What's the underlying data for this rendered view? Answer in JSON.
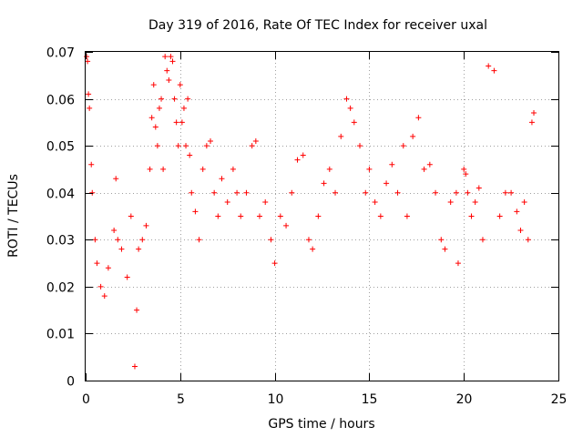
{
  "chart_data": {
    "type": "scatter",
    "title": "Day 319 of 2016, Rate Of TEC Index for receiver uxal",
    "xlabel": "GPS time / hours",
    "ylabel": "ROTI / TECUs",
    "xlim": [
      0,
      25
    ],
    "ylim": [
      0,
      0.07
    ],
    "x_ticks": [
      0,
      5,
      10,
      15,
      20,
      25
    ],
    "x_tick_labels": [
      "0",
      "5",
      "10",
      "15",
      "20",
      "25"
    ],
    "y_ticks": [
      0,
      0.01,
      0.02,
      0.03,
      0.04,
      0.05,
      0.06,
      0.07
    ],
    "y_tick_labels": [
      "0",
      "0.01",
      "0.02",
      "0.03",
      "0.04",
      "0.05",
      "0.06",
      "0.07"
    ],
    "grid": true,
    "legend": "none",
    "marker": "plus",
    "series": [
      {
        "color": "#ff0000",
        "x": [
          0.05,
          0.1,
          0.15,
          0.2,
          0.3,
          0.35,
          0.5,
          0.6,
          0.8,
          1.0,
          1.2,
          1.5,
          1.6,
          1.7,
          1.9,
          2.2,
          2.4,
          2.6,
          2.7,
          2.8,
          3.0,
          3.2,
          3.4,
          3.5,
          3.6,
          3.7,
          3.8,
          3.9,
          4.0,
          4.1,
          4.2,
          4.3,
          4.4,
          4.5,
          4.6,
          4.7,
          4.8,
          4.9,
          5.0,
          5.1,
          5.2,
          5.3,
          5.4,
          5.5,
          5.6,
          5.8,
          6.0,
          6.2,
          6.4,
          6.6,
          6.8,
          7.0,
          7.2,
          7.5,
          7.8,
          8.0,
          8.2,
          8.5,
          8.8,
          9.0,
          9.2,
          9.5,
          9.8,
          10.0,
          10.3,
          10.6,
          10.9,
          11.2,
          11.5,
          11.8,
          12.0,
          12.3,
          12.6,
          12.9,
          13.2,
          13.5,
          13.8,
          14.0,
          14.2,
          14.5,
          14.8,
          15.0,
          15.3,
          15.6,
          15.9,
          16.2,
          16.5,
          16.8,
          17.0,
          17.3,
          17.6,
          17.9,
          18.2,
          18.5,
          18.8,
          19.0,
          19.3,
          19.6,
          19.7,
          20.0,
          20.1,
          20.2,
          20.4,
          20.6,
          20.8,
          21.0,
          21.3,
          21.6,
          21.9,
          22.2,
          22.5,
          22.8,
          23.0,
          23.2,
          23.4,
          23.6,
          23.7
        ],
        "y": [
          0.069,
          0.068,
          0.061,
          0.058,
          0.046,
          0.04,
          0.03,
          0.025,
          0.02,
          0.018,
          0.024,
          0.032,
          0.043,
          0.03,
          0.028,
          0.022,
          0.035,
          0.003,
          0.015,
          0.028,
          0.03,
          0.033,
          0.045,
          0.056,
          0.063,
          0.054,
          0.05,
          0.058,
          0.06,
          0.045,
          0.069,
          0.066,
          0.064,
          0.069,
          0.068,
          0.06,
          0.055,
          0.05,
          0.063,
          0.055,
          0.058,
          0.05,
          0.06,
          0.048,
          0.04,
          0.036,
          0.03,
          0.045,
          0.05,
          0.051,
          0.04,
          0.035,
          0.043,
          0.038,
          0.045,
          0.04,
          0.035,
          0.04,
          0.05,
          0.051,
          0.035,
          0.038,
          0.03,
          0.025,
          0.035,
          0.033,
          0.04,
          0.047,
          0.048,
          0.03,
          0.028,
          0.035,
          0.042,
          0.045,
          0.04,
          0.052,
          0.06,
          0.058,
          0.055,
          0.05,
          0.04,
          0.045,
          0.038,
          0.035,
          0.042,
          0.046,
          0.04,
          0.05,
          0.035,
          0.052,
          0.056,
          0.045,
          0.046,
          0.04,
          0.03,
          0.028,
          0.038,
          0.04,
          0.025,
          0.045,
          0.044,
          0.04,
          0.035,
          0.038,
          0.041,
          0.03,
          0.067,
          0.066,
          0.035,
          0.04,
          0.04,
          0.036,
          0.032,
          0.038,
          0.03,
          0.055,
          0.057
        ]
      }
    ]
  }
}
